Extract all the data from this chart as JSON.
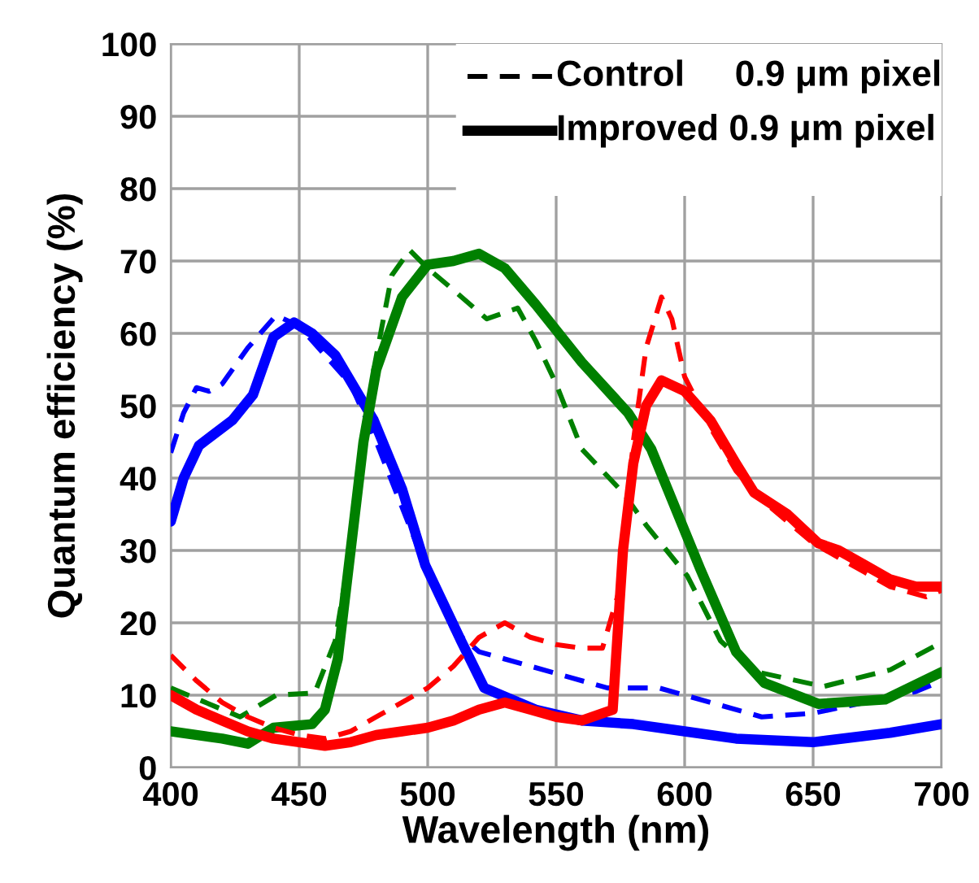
{
  "chart_data": {
    "type": "line",
    "xlabel": "Wavelength (nm)",
    "ylabel": "Quantum efficiency (%)",
    "xlim": [
      400,
      700
    ],
    "xticks": [
      400,
      450,
      500,
      550,
      600,
      650,
      700
    ],
    "ylim": [
      0,
      100
    ],
    "yticks": [
      0,
      10,
      20,
      30,
      40,
      50,
      60,
      70,
      80,
      90,
      100
    ],
    "grid": true,
    "marker": "none",
    "annotations": [
      "Control     0.9 μm pixel",
      "Improved 0.9 μm pixel"
    ],
    "series": [
      {
        "color": "#0000ff",
        "line_style": "dashed",
        "x": [
          400,
          405,
          410,
          415,
          420,
          430,
          441,
          450,
          460,
          470,
          480,
          490,
          500,
          510,
          520,
          530,
          550,
          570,
          590,
          610,
          630,
          650,
          670,
          690,
          700
        ],
        "values": [
          43.5,
          49,
          52.5,
          52,
          53,
          58,
          62.5,
          61,
          57,
          53,
          45,
          36,
          27,
          19,
          16,
          15,
          13,
          11,
          11,
          9,
          7,
          7.5,
          9,
          10.5,
          12
        ]
      },
      {
        "color": "#0000ff",
        "line_style": "solid",
        "x": [
          400,
          405,
          411,
          424,
          432,
          440,
          448,
          455,
          464,
          479,
          490,
          499,
          513,
          522,
          542,
          560,
          580,
          600,
          620,
          650,
          680,
          700
        ],
        "values": [
          34,
          40,
          44.5,
          48,
          51.5,
          59.5,
          61.5,
          60,
          57,
          48,
          38.5,
          28,
          17.5,
          11,
          8,
          6.5,
          6,
          5,
          4,
          3.5,
          4.8,
          6
        ]
      },
      {
        "color": "#008000",
        "line_style": "dashed",
        "x": [
          400,
          427,
          441,
          456,
          464,
          471,
          479,
          486,
          493,
          500,
          510,
          523,
          535,
          542,
          550,
          560,
          576,
          585,
          601,
          614,
          627,
          654,
          680,
          700
        ],
        "values": [
          11,
          7,
          10,
          10.3,
          17.5,
          32.5,
          55,
          68,
          71.5,
          69,
          66,
          62,
          63.5,
          59,
          53,
          44,
          38,
          33.5,
          26.5,
          17.5,
          13.3,
          11.2,
          13.5,
          17.3
        ]
      },
      {
        "color": "#008000",
        "line_style": "solid",
        "x": [
          400,
          420,
          430,
          440,
          455,
          460,
          465,
          470,
          475,
          480,
          490,
          500,
          510,
          520,
          530,
          542,
          560,
          578,
          587,
          606,
          620,
          631,
          652,
          678,
          700
        ],
        "values": [
          5,
          4,
          3.3,
          5.5,
          6,
          8,
          15,
          30,
          45,
          55,
          65,
          69.5,
          70,
          71,
          69,
          64,
          56,
          49,
          44,
          27.5,
          16,
          11.7,
          8.8,
          9.4,
          13.2
        ]
      },
      {
        "color": "#ff0000",
        "line_style": "dashed",
        "x": [
          400,
          410,
          420,
          430,
          440,
          450,
          460,
          470,
          480,
          490,
          500,
          510,
          520,
          530,
          540,
          550,
          560,
          568,
          575,
          580,
          585,
          591,
          595,
          600,
          610,
          620,
          630,
          640,
          650,
          660,
          670,
          680,
          694,
          700
        ],
        "values": [
          15.5,
          12,
          9,
          7,
          5.5,
          4.5,
          4,
          5,
          7,
          9,
          11,
          14,
          18,
          20,
          18,
          17,
          16.5,
          16.5,
          25,
          45,
          58,
          65,
          62,
          54,
          47,
          41,
          37,
          34,
          31,
          29,
          27,
          25,
          23.6,
          24.5
        ]
      },
      {
        "color": "#ff0000",
        "line_style": "solid",
        "x": [
          400,
          410,
          420,
          430,
          440,
          450,
          460,
          470,
          480,
          490,
          500,
          510,
          520,
          530,
          540,
          550,
          560,
          572,
          576,
          580,
          585,
          591,
          600,
          610,
          620,
          627,
          640,
          652,
          660,
          670,
          680,
          690,
          700
        ],
        "values": [
          10,
          8,
          6.5,
          5,
          4,
          3.5,
          3,
          3.5,
          4.5,
          5,
          5.5,
          6.5,
          8,
          9,
          8,
          7,
          6.5,
          8,
          30,
          42,
          50,
          53.5,
          52,
          48,
          42,
          38,
          35,
          31,
          30,
          28,
          26,
          25,
          25
        ]
      }
    ]
  }
}
